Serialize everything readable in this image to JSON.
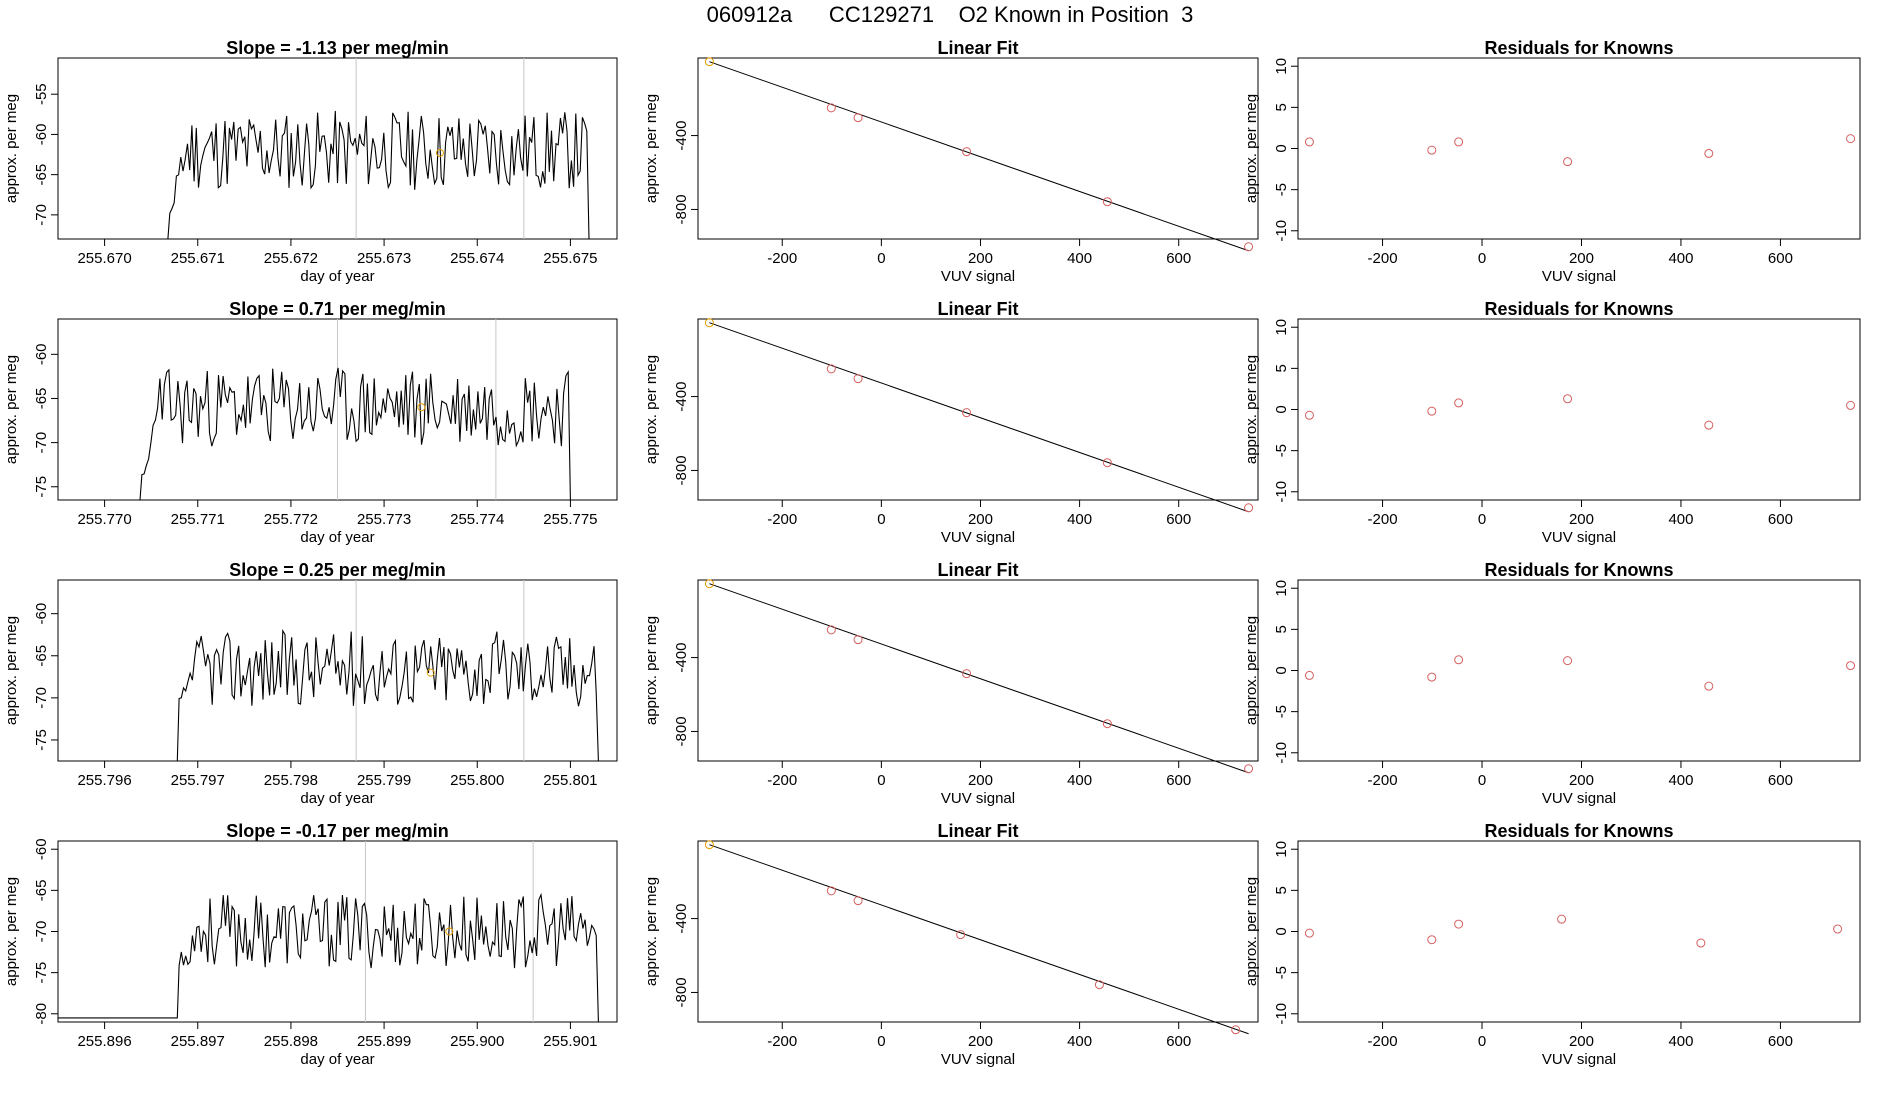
{
  "page_title": "060912a      CC129271    O2 Known in Position  3",
  "colors": {
    "trace": "#000000",
    "orange": "#e69f00",
    "red": "#d55e5e",
    "grid": "#c8c8c8"
  },
  "chart_data": [
    {
      "type": "line",
      "title": "Slope =  -1.13  per meg/min",
      "xlabel": "day of year",
      "ylabel": "approx. per meg",
      "xlim": [
        255.6695,
        255.6755
      ],
      "ylim": [
        -73,
        -50.5
      ],
      "xticks": [
        "255.670",
        "255.671",
        "255.672",
        "255.673",
        "255.674",
        "255.675"
      ],
      "yticks": [
        "-55",
        "-60",
        "-65",
        "-70"
      ],
      "vlines": [
        255.6727,
        255.6745
      ],
      "seed": 11,
      "y_mean": -62,
      "y_amp": 5,
      "start_y": -69,
      "trace_x": [
        255.6707,
        255.6752
      ],
      "flat_start": 255.6695,
      "flat_y": -73,
      "highlight": [
        255.6736,
        -62.3
      ]
    },
    {
      "type": "scatter",
      "title": "Linear Fit",
      "xlabel": "VUV signal",
      "ylabel": "approx. per meg",
      "xlim": [
        -370,
        760
      ],
      "ylim": [
        -960,
        20
      ],
      "xticks": [
        "-200",
        "0",
        "200",
        "400",
        "600"
      ],
      "yticks": [
        "-400",
        "-800"
      ],
      "x": [
        -347,
        -101,
        -47,
        172,
        456,
        741
      ],
      "y": [
        0,
        -250,
        -303,
        -487,
        -758,
        -1002
      ],
      "line": [
        [
          -347,
          0
        ],
        [
          741,
          -1002
        ]
      ]
    },
    {
      "type": "scatter",
      "title": "Residuals for Knowns",
      "xlabel": "VUV signal",
      "ylabel": "approx. per meg",
      "xlim": [
        -370,
        760
      ],
      "ylim": [
        -11,
        11
      ],
      "xticks": [
        "-200",
        "0",
        "200",
        "400",
        "600"
      ],
      "yticks": [
        "10",
        "5",
        "0",
        "-5",
        "-10"
      ],
      "x": [
        -347,
        -101,
        -47,
        172,
        456,
        741
      ],
      "y": [
        0.8,
        -0.2,
        0.8,
        -1.6,
        -0.6,
        1.2
      ]
    },
    {
      "type": "line",
      "title": "Slope =  0.71  per meg/min",
      "xlabel": "day of year",
      "ylabel": "approx. per meg",
      "xlim": [
        255.7695,
        255.7755
      ],
      "ylim": [
        -76.5,
        -56
      ],
      "xticks": [
        "255.770",
        "255.771",
        "255.772",
        "255.773",
        "255.774",
        "255.775"
      ],
      "yticks": [
        "-60",
        "-65",
        "-70",
        "-75"
      ],
      "vlines": [
        255.7725,
        255.7742
      ],
      "seed": 23,
      "y_mean": -66,
      "y_amp": 4.5,
      "start_y": -75,
      "trace_x": [
        255.7704,
        255.775
      ],
      "flat_start": 255.7695,
      "flat_y": -76.5,
      "highlight": [
        255.7734,
        -66
      ]
    },
    {
      "type": "scatter",
      "title": "Linear Fit",
      "xlabel": "VUV signal",
      "ylabel": "approx. per meg",
      "xlim": [
        -370,
        760
      ],
      "ylim": [
        -960,
        20
      ],
      "xticks": [
        "-200",
        "0",
        "200",
        "400",
        "600"
      ],
      "yticks": [
        "-400",
        "-800"
      ],
      "x": [
        -347,
        -101,
        -47,
        172,
        456,
        741
      ],
      "y": [
        0,
        -250,
        -303,
        -487,
        -758,
        -1002
      ],
      "line": [
        [
          -347,
          0
        ],
        [
          741,
          -1002
        ]
      ]
    },
    {
      "type": "scatter",
      "title": "Residuals for Knowns",
      "xlabel": "VUV signal",
      "ylabel": "approx. per meg",
      "xlim": [
        -370,
        760
      ],
      "ylim": [
        -11,
        11
      ],
      "xticks": [
        "-200",
        "0",
        "200",
        "400",
        "600"
      ],
      "yticks": [
        "10",
        "5",
        "0",
        "-5",
        "-10"
      ],
      "x": [
        -347,
        -101,
        -47,
        172,
        456,
        741
      ],
      "y": [
        -0.7,
        -0.2,
        0.8,
        1.3,
        -1.9,
        0.5
      ]
    },
    {
      "type": "line",
      "title": "Slope =  0.25  per meg/min",
      "xlabel": "day of year",
      "ylabel": "approx. per meg",
      "xlim": [
        255.7955,
        255.8015
      ],
      "ylim": [
        -77.5,
        -56
      ],
      "xticks": [
        "255.796",
        "255.797",
        "255.798",
        "255.799",
        "255.800",
        "255.801"
      ],
      "yticks": [
        "-60",
        "-65",
        "-70",
        "-75"
      ],
      "vlines": [
        255.7987,
        255.8005
      ],
      "seed": 37,
      "y_mean": -66.5,
      "y_amp": 4.5,
      "start_y": -72,
      "trace_x": [
        255.7968,
        255.8013
      ],
      "flat_start": 255.7955,
      "flat_y": -77.5,
      "highlight": [
        255.7995,
        -67
      ]
    },
    {
      "type": "scatter",
      "title": "Linear Fit",
      "xlabel": "VUV signal",
      "ylabel": "approx. per meg",
      "xlim": [
        -370,
        760
      ],
      "ylim": [
        -960,
        20
      ],
      "xticks": [
        "-200",
        "0",
        "200",
        "400",
        "600"
      ],
      "yticks": [
        "-400",
        "-800"
      ],
      "x": [
        -347,
        -101,
        -47,
        172,
        456,
        741
      ],
      "y": [
        0,
        -250,
        -303,
        -487,
        -758,
        -1002
      ],
      "line": [
        [
          -347,
          0
        ],
        [
          741,
          -1002
        ]
      ]
    },
    {
      "type": "scatter",
      "title": "Residuals for Knowns",
      "xlabel": "VUV signal",
      "ylabel": "approx. per meg",
      "xlim": [
        -370,
        760
      ],
      "ylim": [
        -11,
        11
      ],
      "xticks": [
        "-200",
        "0",
        "200",
        "400",
        "600"
      ],
      "yticks": [
        "10",
        "5",
        "0",
        "-5",
        "-10"
      ],
      "x": [
        -347,
        -101,
        -47,
        172,
        456,
        741
      ],
      "y": [
        -0.6,
        -0.8,
        1.3,
        1.2,
        -1.9,
        0.6
      ]
    },
    {
      "type": "line",
      "title": "Slope =  -0.17  per meg/min",
      "xlabel": "day of year",
      "ylabel": "approx. per meg",
      "xlim": [
        255.8955,
        255.9015
      ],
      "ylim": [
        -81,
        -59
      ],
      "xticks": [
        "255.896",
        "255.897",
        "255.898",
        "255.899",
        "255.900",
        "255.901"
      ],
      "yticks": [
        "-60",
        "-65",
        "-70",
        "-75",
        "-80"
      ],
      "vlines": [
        255.8988,
        255.9006
      ],
      "seed": 53,
      "y_mean": -70,
      "y_amp": 4.5,
      "start_y": -75,
      "trace_x": [
        255.8968,
        255.9013
      ],
      "flat_start": 255.8955,
      "flat_y": -80.5,
      "highlight": [
        255.8997,
        -70
      ]
    },
    {
      "type": "scatter",
      "title": "Linear Fit",
      "xlabel": "VUV signal",
      "ylabel": "approx. per meg",
      "xlim": [
        -370,
        760
      ],
      "ylim": [
        -960,
        20
      ],
      "xticks": [
        "-200",
        "0",
        "200",
        "400",
        "600"
      ],
      "yticks": [
        "-400",
        "-800"
      ],
      "x": [
        -347,
        -101,
        -47,
        160,
        440,
        715
      ],
      "y": [
        0,
        -250,
        -303,
        -487,
        -758,
        -1002
      ],
      "line": [
        [
          -347,
          0
        ],
        [
          741,
          -1002
        ]
      ]
    },
    {
      "type": "scatter",
      "title": "Residuals for Knowns",
      "xlabel": "VUV signal",
      "ylabel": "approx. per meg",
      "xlim": [
        -370,
        760
      ],
      "ylim": [
        -11,
        11
      ],
      "xticks": [
        "-200",
        "0",
        "200",
        "400",
        "600"
      ],
      "yticks": [
        "10",
        "5",
        "0",
        "-5",
        "-10"
      ],
      "x": [
        -347,
        -101,
        -47,
        160,
        440,
        715
      ],
      "y": [
        -0.2,
        -1.0,
        0.9,
        1.5,
        -1.4,
        0.3
      ]
    }
  ]
}
